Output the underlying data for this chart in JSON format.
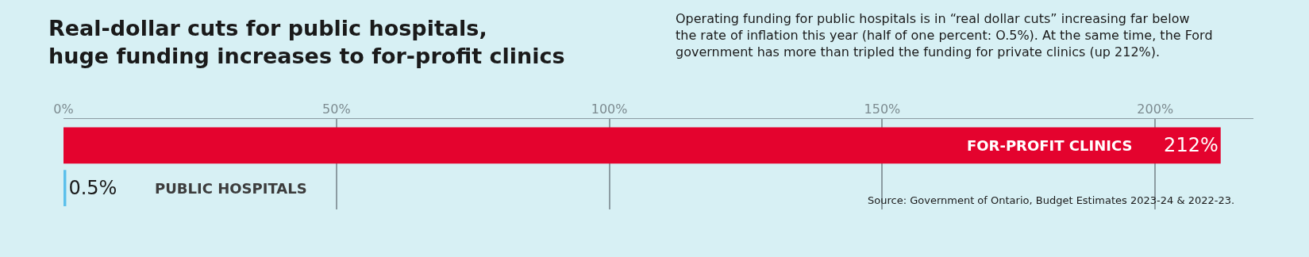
{
  "chart_data": {
    "type": "bar",
    "orientation": "horizontal",
    "title": "Real-dollar cuts for public hospitals,\nhuge funding increases to for-profit clinics",
    "subtitle": "Operating funding for public hospitals is in “real dollar cuts” increasing far below\nthe rate of inflation this year (half of one percent: O.5%). At the same time, the Ford\ngovernment has more than tripled the funding for private clinics (up 212%).",
    "categories": [
      "FOR-PROFIT CLINICS",
      "PUBLIC HOSPITALS"
    ],
    "values": [
      212,
      0.5
    ],
    "colors": [
      "#e4032e",
      "#5bc0eb"
    ],
    "value_labels": [
      "212%",
      "0.5%"
    ],
    "xlim": [
      0,
      218
    ],
    "xticks": [
      {
        "value": 0,
        "label": "0%"
      },
      {
        "value": 50,
        "label": "50%"
      },
      {
        "value": 100,
        "label": "100%"
      },
      {
        "value": 150,
        "label": "150%"
      },
      {
        "value": 200,
        "label": "200%"
      }
    ],
    "grid": "x",
    "legend": false,
    "annotations": [
      "Source: Government of Ontario, Budget Estimates 2023-24 & 2022-23."
    ]
  }
}
